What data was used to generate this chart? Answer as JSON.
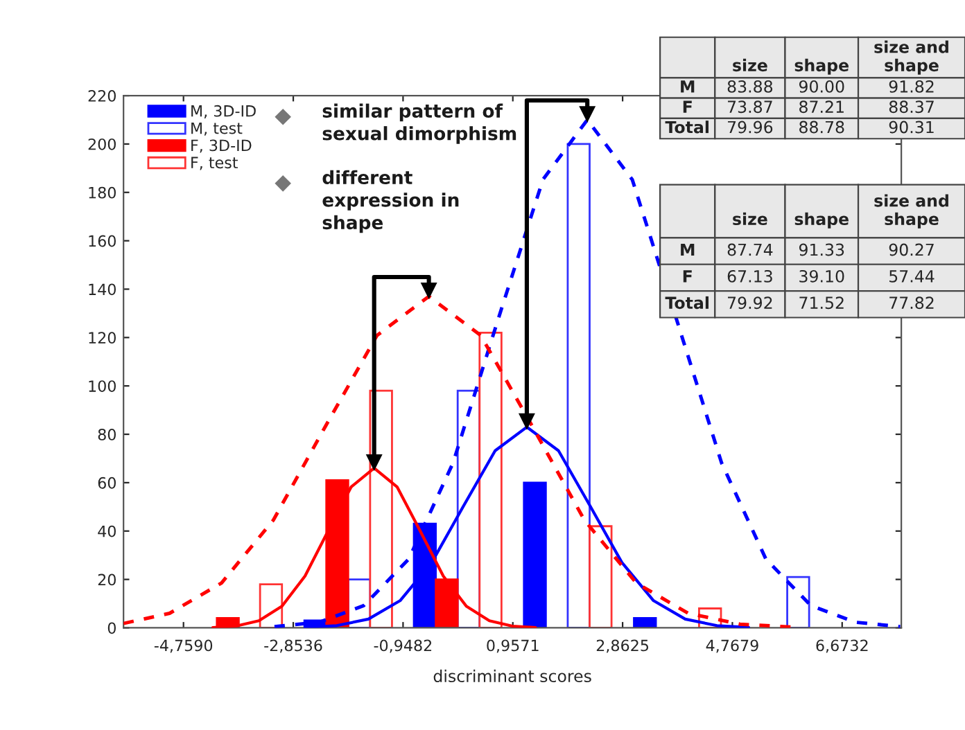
{
  "chart_data": [
    {
      "type": "bar",
      "xlabel": "discriminant scores",
      "xlim": [
        -5.8,
        7.7
      ],
      "ylim": [
        0,
        220
      ],
      "xticks": [
        {
          "value": -4.759,
          "label": "-4,7590"
        },
        {
          "value": -2.8536,
          "label": "-2,8536"
        },
        {
          "value": -0.9482,
          "label": "-0,9482"
        },
        {
          "value": 0.9571,
          "label": "0,9571"
        },
        {
          "value": 2.8625,
          "label": "2,8625"
        },
        {
          "value": 4.7679,
          "label": "4,7679"
        },
        {
          "value": 6.6732,
          "label": "6,6732"
        }
      ],
      "yticks": [
        0,
        20,
        40,
        60,
        80,
        100,
        120,
        140,
        160,
        180,
        200,
        220
      ],
      "legend": "top left",
      "annotations": [
        "similar pattern of\nsexual dimorphism",
        "different\nexpression in\nshape"
      ],
      "series": [
        {
          "name": "M, 3D-ID",
          "type": "bar",
          "color": "#0000ff",
          "x": [
            -2.47,
            -0.57,
            1.34,
            3.25
          ],
          "values": [
            3,
            43,
            60,
            4
          ]
        },
        {
          "name": "M, test",
          "type": "bar",
          "color": "#3333ff",
          "colors": [
            "#ffffff",
            "#ffffff",
            "#ffffff",
            "#ffffff",
            "#ffffff"
          ],
          "x": [
            -1.71,
            0.19,
            2.1,
            4.0,
            5.91
          ],
          "values": [
            20,
            98,
            200,
            null,
            21
          ]
        },
        {
          "name": "F, 3D-ID",
          "type": "bar",
          "color": "#ff0000",
          "x": [
            -3.99,
            -2.09,
            -0.19
          ],
          "values": [
            4,
            61,
            20
          ]
        },
        {
          "name": "F, test",
          "type": "bar",
          "color": "#ff3333",
          "colors": [
            "#ffffff",
            "#ffffff",
            "#ffffff",
            "#ffffff",
            "#ffffff"
          ],
          "x": [
            -3.24,
            -1.33,
            0.57,
            2.48,
            4.38
          ],
          "values": [
            18,
            98,
            122,
            42,
            8
          ]
        },
        {
          "type": "line",
          "color": "#0000ff",
          "line_style": "solid",
          "x": [
            -2.65,
            -2.1,
            -1.55,
            -1.0,
            -0.45,
            0.1,
            0.65,
            1.2,
            1.75,
            2.3,
            2.85,
            3.4,
            3.95,
            4.5,
            5.05
          ],
          "values": [
            0.2,
            0.9,
            3.6,
            11.2,
            27.0,
            50.3,
            73.2,
            83,
            73.2,
            50.3,
            27.0,
            11.2,
            3.6,
            0.9,
            0.2
          ]
        },
        {
          "type": "line",
          "color": "#0000ff",
          "line_style": "dashed",
          "x": [
            -3.18,
            -2.4,
            -1.63,
            -0.85,
            -0.08,
            0.7,
            1.48,
            2.25,
            3.03,
            3.8,
            4.58,
            5.35,
            6.13,
            6.9,
            7.68
          ],
          "values": [
            0.5,
            2.3,
            9.2,
            28.4,
            68.2,
            127.4,
            185.3,
            210,
            185.3,
            127.4,
            68.2,
            28.4,
            9.2,
            2.3,
            0.5
          ]
        },
        {
          "type": "line",
          "color": "#ff0000",
          "line_style": "solid",
          "x": [
            -4.25,
            -3.85,
            -3.45,
            -3.05,
            -2.65,
            -2.25,
            -1.85,
            -1.45,
            -1.05,
            -0.65,
            -0.25,
            0.15,
            0.55,
            0.95,
            1.35
          ],
          "values": [
            0.1,
            0.7,
            2.9,
            8.9,
            21.4,
            40.0,
            58.2,
            66,
            58.2,
            40.0,
            21.4,
            8.9,
            2.9,
            0.7,
            0.1
          ]
        },
        {
          "type": "line",
          "color": "#ff0000",
          "line_style": "dashed",
          "x": [
            -5.8,
            -5.0,
            -4.1,
            -3.2,
            -2.3,
            -1.4,
            -0.5,
            0.4,
            1.3,
            2.2,
            3.1,
            4.0,
            4.9,
            5.8
          ],
          "values": [
            1.8,
            6.0,
            18.5,
            44.5,
            83.1,
            120.9,
            137,
            120.9,
            83.1,
            44.5,
            18.5,
            6.0,
            1.5,
            0.3
          ]
        }
      ]
    },
    {
      "type": "other",
      "categories": [
        "size",
        "shape",
        "size and shape"
      ],
      "y_categories": [
        "M",
        "F",
        "Total"
      ],
      "cell_labels": [
        [
          "83.88",
          "90.00",
          "91.82"
        ],
        [
          "73.87",
          "87.21",
          "88.37"
        ],
        [
          "79.96",
          "88.78",
          "90.31"
        ]
      ]
    },
    {
      "type": "other",
      "categories": [
        "size",
        "shape",
        "size and shape"
      ],
      "y_categories": [
        "M",
        "F",
        "Total"
      ],
      "cell_labels": [
        [
          "87.74",
          "91.33",
          "90.27"
        ],
        [
          "67.13",
          "39.10",
          "57.44"
        ],
        [
          "79.92",
          "71.52",
          "77.82"
        ]
      ]
    }
  ]
}
